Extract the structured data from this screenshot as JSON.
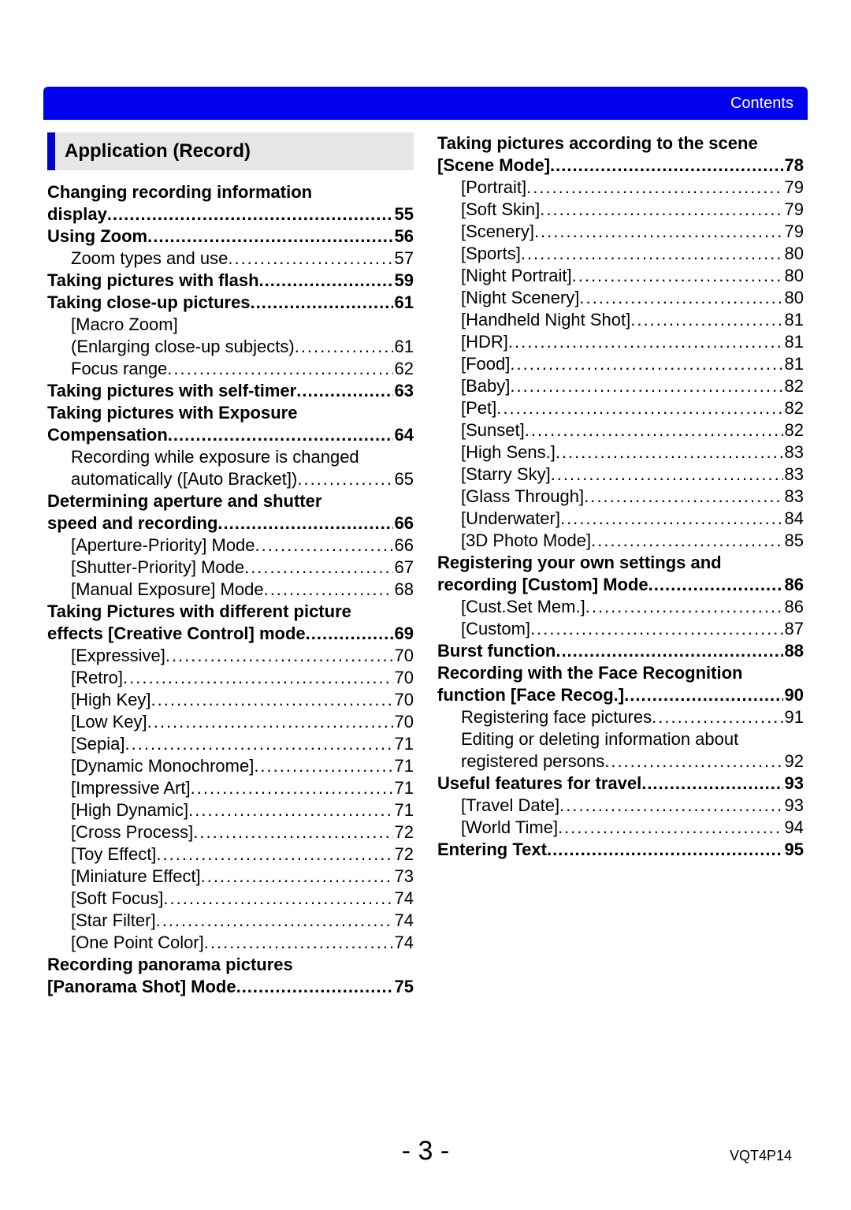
{
  "header": {
    "label": "Contents"
  },
  "section_title": "Application (Record)",
  "footer": {
    "page": "- 3 -",
    "code": "VQT4P14"
  },
  "left": [
    {
      "type": "bold-line",
      "text": "Changing recording information"
    },
    {
      "type": "bold",
      "label": "display",
      "page": "55"
    },
    {
      "type": "bold",
      "label": "Using Zoom",
      "page": "56"
    },
    {
      "type": "sub",
      "label": "Zoom types and use",
      "page": "57"
    },
    {
      "type": "bold",
      "label": "Taking pictures with flash",
      "page": "59"
    },
    {
      "type": "bold",
      "label": "Taking close-up pictures ",
      "page": "61"
    },
    {
      "type": "sub-plain",
      "text": "[Macro Zoom]"
    },
    {
      "type": "sub",
      "label": "(Enlarging close-up subjects) ",
      "page": "61"
    },
    {
      "type": "sub",
      "label": "Focus range ",
      "page": "62"
    },
    {
      "type": "bold",
      "label": "Taking pictures with self-timer",
      "page": "63"
    },
    {
      "type": "bold-line",
      "text": "Taking pictures with Exposure"
    },
    {
      "type": "bold",
      "label": "Compensation",
      "page": "64"
    },
    {
      "type": "sub-plain",
      "text": "Recording while exposure is changed"
    },
    {
      "type": "sub",
      "label": "automatically ([Auto Bracket]) ",
      "page": "65"
    },
    {
      "type": "bold-line",
      "text": "Determining aperture and shutter"
    },
    {
      "type": "bold",
      "label": "speed and recording",
      "page": "66"
    },
    {
      "type": "sub",
      "label": "[Aperture-Priority] Mode ",
      "page": "66"
    },
    {
      "type": "sub",
      "label": "[Shutter-Priority] Mode ",
      "page": "67"
    },
    {
      "type": "sub",
      "label": "[Manual Exposure] Mode ",
      "page": "68"
    },
    {
      "type": "bold-line",
      "text": "Taking Pictures with different picture"
    },
    {
      "type": "bold",
      "label": "effects  [Creative Control] mode",
      "page": "69"
    },
    {
      "type": "sub",
      "label": "[Expressive]",
      "page": "70"
    },
    {
      "type": "sub",
      "label": "[Retro] ",
      "page": "70"
    },
    {
      "type": "sub",
      "label": "[High Key]",
      "page": "70"
    },
    {
      "type": "sub",
      "label": "[Low Key] ",
      "page": "70"
    },
    {
      "type": "sub",
      "label": "[Sepia]",
      "page": "71"
    },
    {
      "type": "sub",
      "label": "[Dynamic Monochrome] ",
      "page": "71"
    },
    {
      "type": "sub",
      "label": "[Impressive Art] ",
      "page": "71"
    },
    {
      "type": "sub",
      "label": "[High Dynamic]",
      "page": "71"
    },
    {
      "type": "sub",
      "label": "[Cross Process]",
      "page": "72"
    },
    {
      "type": "sub",
      "label": "[Toy Effect] ",
      "page": "72"
    },
    {
      "type": "sub",
      "label": "[Miniature Effect] ",
      "page": "73"
    },
    {
      "type": "sub",
      "label": "[Soft Focus] ",
      "page": "74"
    },
    {
      "type": "sub",
      "label": "[Star Filter]",
      "page": "74"
    },
    {
      "type": "sub",
      "label": "[One Point Color]",
      "page": "74"
    },
    {
      "type": "bold-line",
      "text": "Recording panorama pictures"
    },
    {
      "type": "bold",
      "label": "[Panorama Shot] Mode ",
      "page": "75"
    }
  ],
  "right": [
    {
      "type": "bold-line",
      "text": "Taking pictures according to the scene"
    },
    {
      "type": "bold",
      "label": "[Scene Mode]",
      "page": "78"
    },
    {
      "type": "sub",
      "label": "[Portrait]",
      "page": "79"
    },
    {
      "type": "sub",
      "label": "[Soft Skin]",
      "page": "79"
    },
    {
      "type": "sub",
      "label": "[Scenery] ",
      "page": "79"
    },
    {
      "type": "sub",
      "label": "[Sports]",
      "page": "80"
    },
    {
      "type": "sub",
      "label": "[Night Portrait] ",
      "page": "80"
    },
    {
      "type": "sub",
      "label": "[Night Scenery]",
      "page": "80"
    },
    {
      "type": "sub",
      "label": "[Handheld Night Shot] ",
      "page": "81"
    },
    {
      "type": "sub",
      "label": "[HDR] ",
      "page": "81"
    },
    {
      "type": "sub",
      "label": "[Food] ",
      "page": "81"
    },
    {
      "type": "sub",
      "label": "[Baby] ",
      "page": "82"
    },
    {
      "type": "sub",
      "label": "[Pet]",
      "page": "82"
    },
    {
      "type": "sub",
      "label": "[Sunset]",
      "page": "82"
    },
    {
      "type": "sub",
      "label": "[High Sens.]",
      "page": "83"
    },
    {
      "type": "sub",
      "label": "[Starry Sky]",
      "page": "83"
    },
    {
      "type": "sub",
      "label": "[Glass Through]",
      "page": "83"
    },
    {
      "type": "sub",
      "label": "[Underwater]",
      "page": "84"
    },
    {
      "type": "sub",
      "label": "[3D Photo Mode] ",
      "page": "85"
    },
    {
      "type": "bold-line",
      "text": "Registering your own settings and"
    },
    {
      "type": "bold",
      "label": "recording  [Custom] Mode",
      "page": "86"
    },
    {
      "type": "sub",
      "label": "[Cust.Set Mem.] ",
      "page": "86"
    },
    {
      "type": "sub",
      "label": "[Custom]",
      "page": "87"
    },
    {
      "type": "bold",
      "label": "Burst function",
      "page": "88"
    },
    {
      "type": "bold-line",
      "text": "Recording with the Face Recognition"
    },
    {
      "type": "bold",
      "label": "function  [Face Recog.]",
      "page": "90"
    },
    {
      "type": "sub",
      "label": "Registering face pictures ",
      "page": "91"
    },
    {
      "type": "sub-plain",
      "text": "Editing or deleting information about"
    },
    {
      "type": "sub",
      "label": "registered persons  ",
      "page": "92"
    },
    {
      "type": "bold",
      "label": "Useful features for travel ",
      "page": "93"
    },
    {
      "type": "sub",
      "label": "[Travel Date]",
      "page": "93"
    },
    {
      "type": "sub",
      "label": "[World Time]",
      "page": "94"
    },
    {
      "type": "bold",
      "label": "Entering Text",
      "page": "95"
    }
  ]
}
